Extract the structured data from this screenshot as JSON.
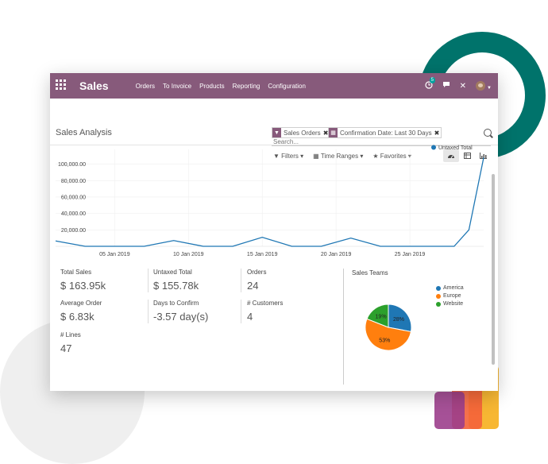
{
  "navbar": {
    "app_name": "Sales",
    "menu": [
      "Orders",
      "To Invoice",
      "Products",
      "Reporting",
      "Configuration"
    ],
    "activity_badge": "5",
    "close_glyph": "✕"
  },
  "control_panel": {
    "title": "Sales Analysis",
    "facets": [
      {
        "icon": "filter-icon",
        "label": "Sales Orders"
      },
      {
        "icon": "calendar-icon",
        "label": "Confirmation Date: Last 30 Days"
      }
    ],
    "search_placeholder": "Search...",
    "filters_label": "Filters",
    "time_ranges_label": "Time Ranges",
    "favorites_label": "Favorites",
    "views": [
      "dashboard-icon",
      "pivot-icon",
      "graph-icon"
    ]
  },
  "chart_data": {
    "type": "line",
    "series": [
      {
        "name": "Untaxed Total",
        "color": "#1f77b4"
      }
    ],
    "x": [
      "2019-01-01",
      "2019-01-03",
      "2019-01-05",
      "2019-01-07",
      "2019-01-09",
      "2019-01-11",
      "2019-01-13",
      "2019-01-15",
      "2019-01-17",
      "2019-01-19",
      "2019-01-21",
      "2019-01-23",
      "2019-01-25",
      "2019-01-27",
      "2019-01-28",
      "2019-01-29",
      "2019-01-30"
    ],
    "values": [
      6500,
      0,
      0,
      0,
      7000,
      0,
      0,
      11000,
      0,
      0,
      10000,
      0,
      0,
      0,
      0,
      20000,
      108000
    ],
    "y_ticks": [
      "20,000.00",
      "40,000.00",
      "60,000.00",
      "80,000.00",
      "100,000.00"
    ],
    "x_ticks": [
      "05 Jan 2019",
      "10 Jan 2019",
      "15 Jan 2019",
      "20 Jan 2019",
      "25 Jan 2019"
    ],
    "ylim": [
      0,
      118000
    ],
    "legend_position": "top-right",
    "grid": true
  },
  "kpis": [
    {
      "label": "Total Sales",
      "value": "$ 163.95k"
    },
    {
      "label": "Untaxed Total",
      "value": "$ 155.78k"
    },
    {
      "label": "Orders",
      "value": "24"
    },
    {
      "label": "Average Order",
      "value": "$ 6.83k"
    },
    {
      "label": "Days to Confirm",
      "value": "-3.57 day(s)"
    },
    {
      "label": "# Customers",
      "value": "4"
    },
    {
      "label": "# Lines",
      "value": "47"
    }
  ],
  "sales_teams": {
    "title": "Sales Teams",
    "slices": [
      {
        "name": "America",
        "value": 28,
        "label": "28%",
        "color": "#1f77b4"
      },
      {
        "name": "Europe",
        "value": 53,
        "label": "53%",
        "color": "#ff7f0e"
      },
      {
        "name": "Website",
        "value": 19,
        "label": "19%",
        "color": "#2ca02c"
      }
    ]
  }
}
